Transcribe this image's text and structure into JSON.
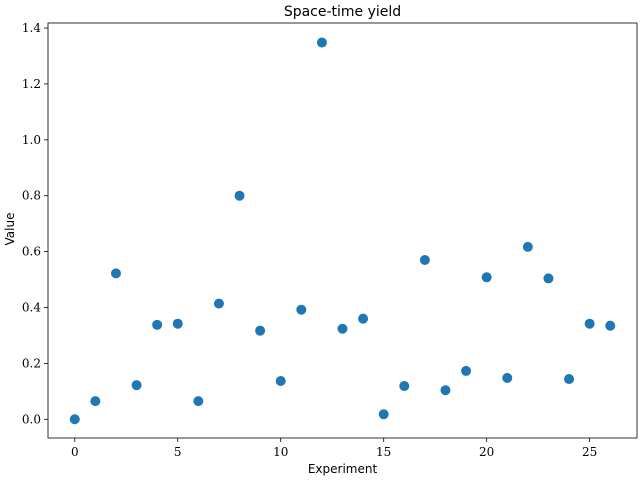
{
  "chart_data": {
    "type": "scatter",
    "title": "Space-time yield",
    "xlabel": "Experiment",
    "ylabel": "Value",
    "xlim": [
      -1.3,
      27.3
    ],
    "ylim": [
      -0.067,
      1.418
    ],
    "xticks": [
      0,
      5,
      10,
      15,
      20,
      25
    ],
    "yticks": [
      0.0,
      0.2,
      0.4,
      0.6,
      0.8,
      1.0,
      1.2,
      1.4
    ],
    "ytick_labels": [
      "0.0",
      "0.2",
      "0.4",
      "0.6",
      "0.8",
      "1.0",
      "1.2",
      "1.4"
    ],
    "grid": false,
    "marker_color": "#1f77b4",
    "x": [
      0,
      1,
      2,
      3,
      4,
      5,
      6,
      7,
      8,
      9,
      10,
      11,
      12,
      13,
      14,
      15,
      16,
      17,
      18,
      19,
      20,
      21,
      22,
      23,
      24,
      25,
      26
    ],
    "y": [
      0.0,
      0.065,
      0.522,
      0.122,
      0.338,
      0.342,
      0.065,
      0.414,
      0.8,
      0.317,
      0.137,
      0.392,
      1.348,
      0.324,
      0.36,
      0.018,
      0.119,
      0.57,
      0.104,
      0.173,
      0.508,
      0.148,
      0.617,
      0.504,
      0.144,
      0.342,
      0.335
    ]
  }
}
